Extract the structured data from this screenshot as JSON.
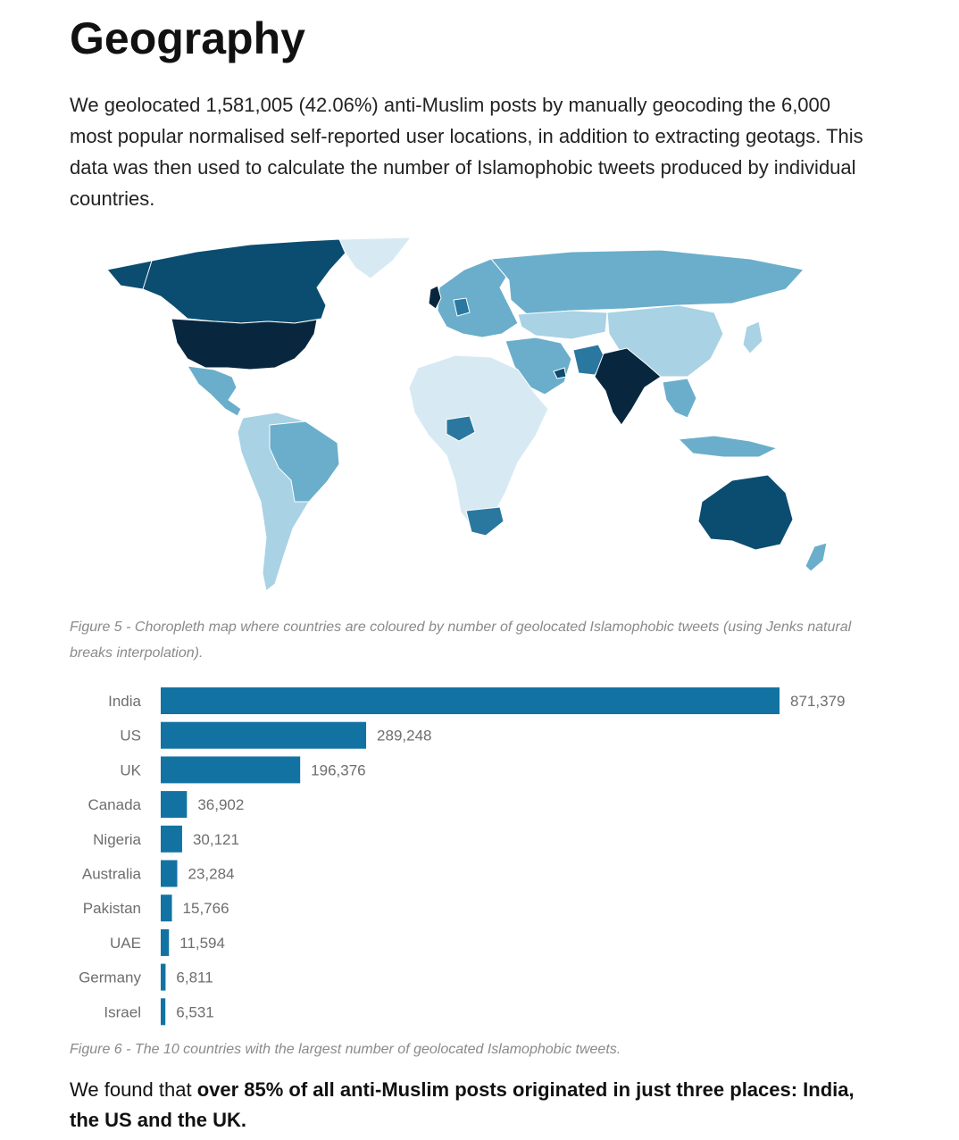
{
  "heading": "Geography",
  "intro": "We geolocated 1,581,005 (42.06%) anti-Muslim posts by manually geocoding the 6,000 most popular normalised self-reported user locations, in addition to extracting geotags. This data was then used to calculate the number of Islamophobic tweets produced by individual countries.",
  "map": {
    "palette": {
      "very_high": "#08273f",
      "high": "#0b4d70",
      "medium_high": "#2a78a0",
      "medium": "#6aaecb",
      "low": "#a9d2e4",
      "very_low": "#d7eaf3"
    }
  },
  "figure5_caption": "Figure 5 - Choropleth map where countries are coloured by number of geolocated Islamophobic tweets (using Jenks natural breaks interpolation).",
  "chart_data": {
    "type": "bar",
    "orientation": "horizontal",
    "categories": [
      "India",
      "US",
      "UK",
      "Canada",
      "Nigeria",
      "Australia",
      "Pakistan",
      "UAE",
      "Germany",
      "Israel"
    ],
    "values": [
      871379,
      289248,
      196376,
      36902,
      30121,
      23284,
      15766,
      11594,
      6811,
      6531
    ],
    "value_labels": [
      "871,379",
      "289,248",
      "196,376",
      "36,902",
      "30,121",
      "23,284",
      "15,766",
      "11,594",
      "6,811",
      "6,531"
    ],
    "bar_color": "#1273a3",
    "xlim": [
      0,
      871379
    ],
    "grid": false,
    "title": "",
    "xlabel": "",
    "ylabel": ""
  },
  "figure6_caption": "Figure 6 - The 10 countries with the largest number of geolocated Islamophobic tweets.",
  "conclusion": {
    "lead": "We found that ",
    "emphasis": "over 85% of all anti-Muslim posts originated in just three places: India, the US and the UK."
  }
}
